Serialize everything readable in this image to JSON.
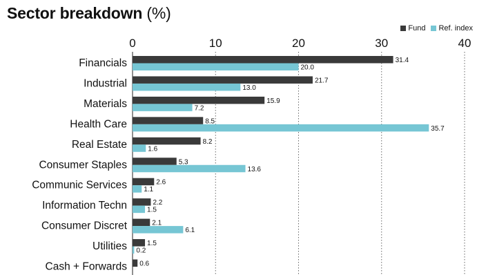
{
  "chart_data": {
    "type": "bar",
    "orientation": "horizontal",
    "title": "Sector breakdown",
    "title_unit": "(%)",
    "categories": [
      "Financials",
      "Industrial",
      "Materials",
      "Health Care",
      "Real Estate",
      "Consumer Staples",
      "Communic Services",
      "Information Techn",
      "Consumer Discret",
      "Utilities",
      "Cash + Forwards"
    ],
    "series": [
      {
        "name": "Fund",
        "color": "#3a3a3a",
        "values": [
          31.4,
          21.7,
          15.9,
          8.5,
          8.2,
          5.3,
          2.6,
          2.2,
          2.1,
          1.5,
          0.6
        ]
      },
      {
        "name": "Ref. index",
        "color": "#76c6d4",
        "values": [
          20.0,
          13.0,
          7.2,
          35.7,
          1.6,
          13.6,
          1.1,
          1.5,
          6.1,
          0.2,
          null
        ]
      }
    ],
    "xlim": [
      0,
      40
    ],
    "xticks": [
      "0",
      "10",
      "20",
      "30",
      "40"
    ],
    "grid": "vertical dotted",
    "legend_position": "top-right"
  }
}
